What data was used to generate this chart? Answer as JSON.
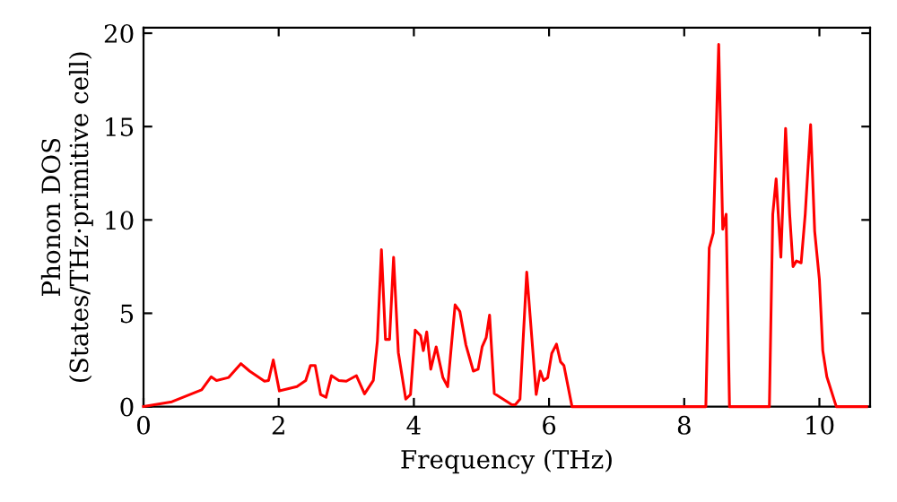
{
  "chart_data": {
    "type": "line",
    "xlabel": "Frequency (THz)",
    "ylabel": "Phonon DOS\n(States/THz·primitive cell)",
    "xlim": [
      0,
      10.75
    ],
    "ylim": [
      0,
      20.3
    ],
    "xticks": [
      0,
      2,
      4,
      6,
      8,
      10
    ],
    "yticks": [
      0,
      5,
      10,
      15,
      20
    ],
    "grid": false,
    "marker": "none",
    "line_style": "solid",
    "series": [
      {
        "color": "#ff0000",
        "x": [
          0,
          0.42,
          0.86,
          1.0,
          1.08,
          1.26,
          1.44,
          1.57,
          1.79,
          1.85,
          1.92,
          2.01,
          2.27,
          2.4,
          2.47,
          2.54,
          2.62,
          2.7,
          2.78,
          2.89,
          3.0,
          3.15,
          3.27,
          3.4,
          3.46,
          3.52,
          3.58,
          3.64,
          3.7,
          3.77,
          3.88,
          3.95,
          4.02,
          4.1,
          4.14,
          4.19,
          4.25,
          4.33,
          4.43,
          4.5,
          4.61,
          4.68,
          4.77,
          4.88,
          4.95,
          5.01,
          5.07,
          5.12,
          5.19,
          5.32,
          5.45,
          5.5,
          5.57,
          5.67,
          5.81,
          5.87,
          5.92,
          5.98,
          6.04,
          6.11,
          6.17,
          6.22,
          6.34,
          8.32,
          8.37,
          8.43,
          8.51,
          8.57,
          8.62,
          8.67,
          9.26,
          9.31,
          9.36,
          9.43,
          9.5,
          9.56,
          9.61,
          9.66,
          9.73,
          9.79,
          9.87,
          9.93,
          10.0,
          10.05,
          10.11,
          10.25,
          10.7
        ],
        "values": [
          0,
          0.26,
          0.9,
          1.6,
          1.4,
          1.56,
          2.3,
          1.9,
          1.36,
          1.4,
          2.5,
          0.84,
          1.07,
          1.4,
          2.2,
          2.2,
          0.65,
          0.5,
          1.66,
          1.4,
          1.36,
          1.66,
          0.68,
          1.4,
          3.5,
          8.4,
          3.6,
          3.6,
          8.0,
          2.9,
          0.4,
          0.65,
          4.1,
          3.8,
          3.0,
          4.0,
          2.0,
          3.2,
          1.55,
          1.07,
          5.45,
          5.1,
          3.3,
          1.9,
          2.0,
          3.2,
          3.7,
          4.9,
          0.7,
          0.4,
          0.1,
          0.1,
          0.4,
          7.2,
          0.65,
          1.9,
          1.4,
          1.55,
          2.85,
          3.35,
          2.4,
          2.2,
          0,
          0,
          8.5,
          9.3,
          19.4,
          9.5,
          10.3,
          0,
          0,
          10.3,
          12.2,
          8.0,
          14.9,
          10.3,
          7.5,
          7.8,
          7.7,
          10.3,
          15.1,
          9.4,
          6.8,
          3.0,
          1.6,
          0,
          0
        ]
      }
    ]
  }
}
